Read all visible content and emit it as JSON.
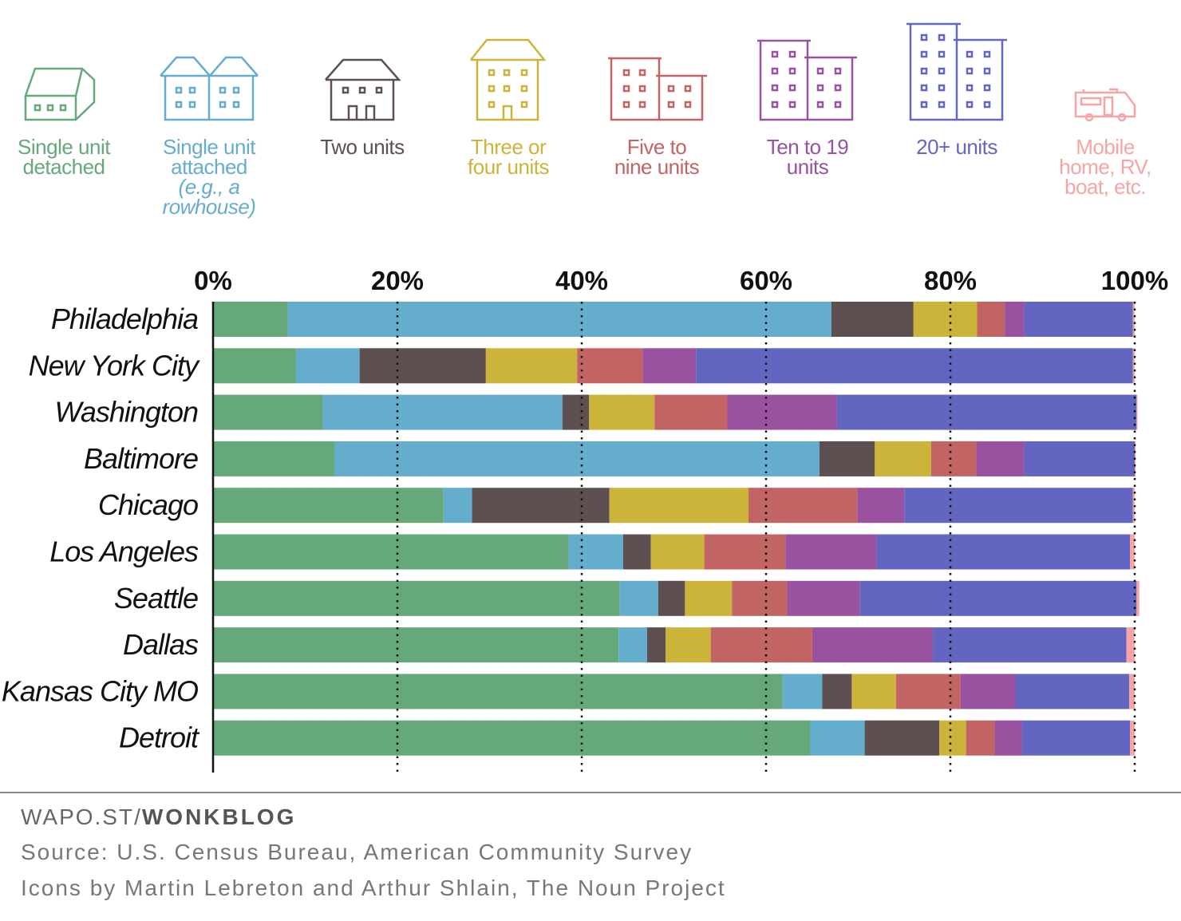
{
  "chart_data": {
    "type": "bar",
    "orientation": "horizontal",
    "stacked": true,
    "xlim": [
      0,
      100
    ],
    "x_ticks": [
      "0%",
      "20%",
      "40%",
      "60%",
      "80%",
      "100%"
    ],
    "grid": "dotted vertical",
    "categories": [
      "Philadelphia",
      "New York City",
      "Washington",
      "Baltimore",
      "Chicago",
      "Los Angeles",
      "Seattle",
      "Dallas",
      "Kansas City MO",
      "Detroit"
    ],
    "series": [
      {
        "name": "Single unit detached",
        "color": "#65a87a",
        "icon": "detached-house-icon",
        "values": [
          8.1,
          9.0,
          11.9,
          13.2,
          25.0,
          38.6,
          44.1,
          44.0,
          61.8,
          64.8
        ]
      },
      {
        "name": "Single unit attached (e.g., a rowhouse)",
        "color": "#65adcd",
        "icon": "rowhouse-icon",
        "values": [
          59.0,
          6.9,
          26.0,
          52.6,
          3.1,
          5.9,
          4.2,
          3.1,
          4.3,
          5.9
        ]
      },
      {
        "name": "Two units",
        "color": "#5e5050",
        "icon": "duplex-icon",
        "values": [
          8.9,
          13.7,
          2.9,
          6.0,
          14.9,
          3.0,
          2.9,
          2.0,
          3.2,
          8.1
        ]
      },
      {
        "name": "Three or four units",
        "color": "#ccb33a",
        "icon": "small-apartment-icon",
        "values": [
          6.9,
          9.9,
          7.1,
          6.1,
          15.1,
          5.8,
          5.1,
          4.9,
          4.8,
          2.9
        ]
      },
      {
        "name": "Five to nine units",
        "color": "#c26464",
        "icon": "apartment-icon",
        "values": [
          3.0,
          7.1,
          7.9,
          4.9,
          11.8,
          8.8,
          6.0,
          11.0,
          7.0,
          3.1
        ]
      },
      {
        "name": "Ten to 19 units",
        "color": "#9852a0",
        "icon": "mid-rise-icon",
        "values": [
          2.1,
          5.8,
          11.9,
          5.2,
          5.1,
          9.9,
          7.9,
          13.1,
          6.0,
          3.0
        ]
      },
      {
        "name": "20+ units",
        "color": "#6266c0",
        "icon": "high-rise-icon",
        "values": [
          11.8,
          47.4,
          32.5,
          12.0,
          24.8,
          27.5,
          30.0,
          21.0,
          12.3,
          11.7
        ]
      },
      {
        "name": "Mobile home, RV, boat, etc.",
        "color": "#f5a5a5",
        "icon": "rv-icon",
        "values": [
          0.2,
          0.2,
          0.1,
          0.1,
          0.2,
          0.5,
          0.3,
          0.9,
          0.6,
          0.5
        ]
      }
    ]
  },
  "legend": [
    {
      "lines": [
        "Single unit",
        "detached"
      ],
      "italic": []
    },
    {
      "lines": [
        "Single unit",
        "attached"
      ],
      "italic": [
        "(e.g., a",
        "rowhouse)"
      ]
    },
    {
      "lines": [
        "Two units"
      ],
      "italic": []
    },
    {
      "lines": [
        "Three or",
        "four units"
      ],
      "italic": []
    },
    {
      "lines": [
        "Five to",
        "nine units"
      ],
      "italic": []
    },
    {
      "lines": [
        "Ten to 19",
        "units"
      ],
      "italic": []
    },
    {
      "lines": [
        "20+ units"
      ],
      "italic": []
    },
    {
      "lines": [
        "Mobile",
        "home, RV,",
        "boat, etc."
      ],
      "italic": []
    }
  ],
  "footer": {
    "credit_prefix": "WAPO.ST/",
    "credit_bold": "WONKBLOG",
    "source": "Source: U.S. Census Bureau, American Community Survey",
    "icons_credit": "Icons by Martin Lebreton and Arthur Shlain, The Noun Project"
  }
}
